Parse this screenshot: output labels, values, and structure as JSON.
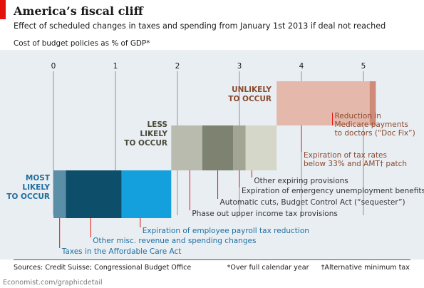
{
  "header": {
    "title": "America’s fiscal cliff",
    "subtitle": "Effect of scheduled changes in taxes and spending from January 1st 2013 if deal not reached",
    "panel_label": "Cost of budget policies as % of GDP*"
  },
  "chart_data": {
    "type": "bar",
    "subtype": "stacked horizontal bar groups (step chart)",
    "xlim": [
      0,
      5
    ],
    "x_ticks": [
      "0",
      "1",
      "2",
      "3",
      "4",
      "5"
    ],
    "grid": true,
    "groups": [
      {
        "label_lines": [
          "MOST",
          "LIKELY",
          "TO OCCUR"
        ],
        "label_color": "#1f6f9f",
        "segments": [
          {
            "name": "Taxes in the Affordable Care Act",
            "start": 0,
            "end": 0.2,
            "color": "#5b8fa8"
          },
          {
            "name": "Other misc. revenue and spending changes",
            "start": 0.2,
            "end": 1.1,
            "color": "#0d4e6b"
          },
          {
            "name": "Expiration of employee payroll tax reduction",
            "start": 1.1,
            "end": 1.9,
            "color": "#13a0dc"
          }
        ]
      },
      {
        "label_lines": [
          "LESS",
          "LIKELY",
          "TO OCCUR"
        ],
        "label_color": "#4a4a3a",
        "segments": [
          {
            "name": "Phase out upper income tax provisions",
            "start": 1.9,
            "end": 2.4,
            "color": "#b8bbad"
          },
          {
            "name": "Automatic cuts, Budget Control Act (“sequester”)",
            "start": 2.4,
            "end": 2.9,
            "color": "#7e8371"
          },
          {
            "name": "Expiration of emergency unemployment benefits",
            "start": 2.9,
            "end": 3.1,
            "color": "#a2a593"
          },
          {
            "name": "Other expiring provisions",
            "start": 3.1,
            "end": 3.6,
            "color": "#d5d8c9"
          }
        ]
      },
      {
        "label_lines": [
          "UNLIKELY",
          "TO OCCUR"
        ],
        "label_color": "#8a4a2e",
        "segments": [
          {
            "name": "Expiration of tax rates below 33% and AMT† patch",
            "start": 3.6,
            "end": 5.1,
            "color": "#e4b8ab"
          },
          {
            "name": "Reduction in Medicare payments to doctors (“Doc Fix”)",
            "start": 5.1,
            "end": 5.2,
            "color": "#cf8b78"
          }
        ]
      }
    ],
    "annotations": [
      {
        "lines": [
          "Taxes in the Affordable Care Act"
        ],
        "value": 0.1,
        "color": "#1f6f9f"
      },
      {
        "lines": [
          "Other misc. revenue and spending changes"
        ],
        "value": 0.6,
        "color": "#1f6f9f"
      },
      {
        "lines": [
          "Expiration of employee payroll tax reduction"
        ],
        "value": 1.4,
        "color": "#1f6f9f"
      },
      {
        "lines": [
          "Phase out upper income tax provisions"
        ],
        "value": 2.2,
        "color": "#333333"
      },
      {
        "lines": [
          "Automatic cuts, Budget Control Act (“sequester”)"
        ],
        "value": 2.65,
        "color": "#333333"
      },
      {
        "lines": [
          "Expiration of emergency unemployment benefits"
        ],
        "value": 3.0,
        "color": "#333333"
      },
      {
        "lines": [
          "Other expiring provisions"
        ],
        "value": 3.2,
        "color": "#333333"
      },
      {
        "lines": [
          "Expiration of tax rates",
          "below 33% and AMT† patch"
        ],
        "value": 4.0,
        "color": "#8a4a2e"
      },
      {
        "lines": [
          "Reduction in",
          "Medicare payments",
          "to doctors (“Doc Fix”)"
        ],
        "value": 4.5,
        "color": "#8a4a2e"
      }
    ],
    "accent_colors": {
      "red_flag": "#e3120b",
      "leader_lines": "#e3120b",
      "background": "#e9eef3"
    }
  },
  "footer": {
    "source": "Sources: Credit Suisse; Congressional Budget Office",
    "footnote_1": "*Over full calendar year",
    "footnote_2": "†Alternative minimum tax",
    "credit": "Economist.com/graphicdetail"
  }
}
